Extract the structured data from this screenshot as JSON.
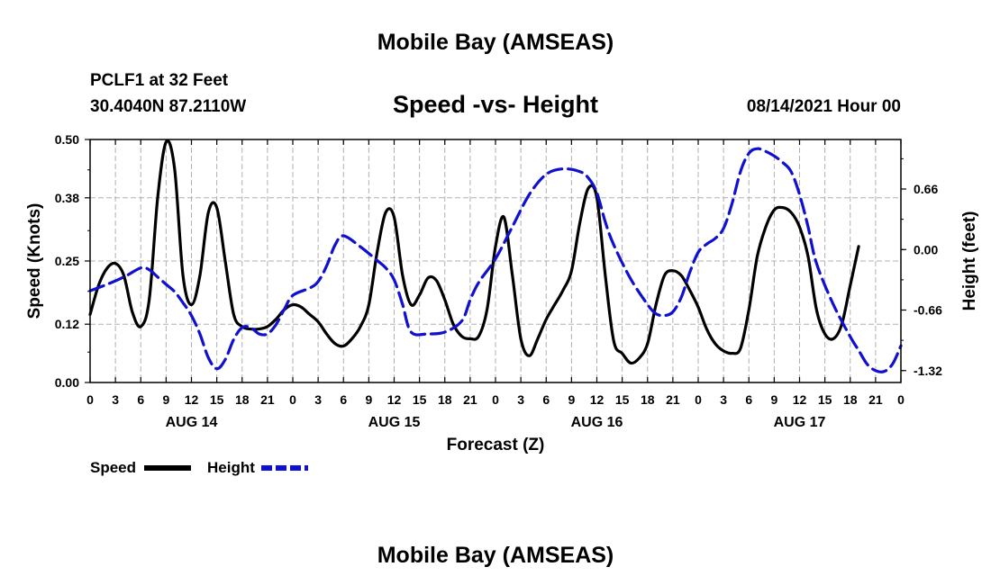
{
  "titles": {
    "main": "Mobile Bay (AMSEAS)",
    "footer": "Mobile Bay (AMSEAS)",
    "station": "PCLF1 at 32 Feet",
    "position": "30.4040N  87.2110W",
    "subtitle": "Speed -vs- Height",
    "datetime": "08/14/2021 Hour 00"
  },
  "colors": {
    "speed": "#000000",
    "height": "#1010d0",
    "grid": "#b0b0b0"
  },
  "chart_data": {
    "type": "line",
    "title": "Speed -vs- Height",
    "xlabel": "Forecast (Z)",
    "ylabel": "Speed (Knots)",
    "y2label": "Height (feet)",
    "xlim": [
      0,
      96
    ],
    "ylim": [
      0,
      0.5
    ],
    "y2lim": [
      -1.45,
      1.2
    ],
    "grid": true,
    "x_tick_labels": [
      "0",
      "3",
      "6",
      "9",
      "12",
      "15",
      "18",
      "21",
      "0",
      "3",
      "6",
      "9",
      "12",
      "15",
      "18",
      "21",
      "0",
      "3",
      "6",
      "9",
      "12",
      "15",
      "18",
      "21",
      "0",
      "3",
      "6",
      "9",
      "12",
      "15",
      "18",
      "21",
      "0"
    ],
    "day_labels": [
      "AUG 14",
      "AUG 15",
      "AUG 16",
      "AUG 17"
    ],
    "y_ticks": [
      "0.00",
      "0.12",
      "0.25",
      "0.38",
      "0.50"
    ],
    "y2_ticks": [
      "-1.32",
      "-0.66",
      "0.00",
      "0.66"
    ],
    "legend": {
      "position": "bottom-left",
      "speed_label": "Speed",
      "height_label": "Height"
    },
    "series": [
      {
        "name": "Speed",
        "axis": "left",
        "style": "solid",
        "points": [
          [
            0,
            0.14
          ],
          [
            1,
            0.2
          ],
          [
            2,
            0.235
          ],
          [
            3,
            0.245
          ],
          [
            4,
            0.22
          ],
          [
            5,
            0.145
          ],
          [
            6,
            0.115
          ],
          [
            7,
            0.17
          ],
          [
            8,
            0.38
          ],
          [
            9,
            0.495
          ],
          [
            10,
            0.44
          ],
          [
            11,
            0.22
          ],
          [
            12,
            0.16
          ],
          [
            13,
            0.22
          ],
          [
            14,
            0.35
          ],
          [
            15,
            0.36
          ],
          [
            16,
            0.25
          ],
          [
            17,
            0.14
          ],
          [
            18,
            0.115
          ],
          [
            19,
            0.11
          ],
          [
            20,
            0.11
          ],
          [
            21,
            0.115
          ],
          [
            22,
            0.13
          ],
          [
            23,
            0.15
          ],
          [
            24,
            0.16
          ],
          [
            25,
            0.155
          ],
          [
            26,
            0.14
          ],
          [
            27,
            0.125
          ],
          [
            28,
            0.1
          ],
          [
            29,
            0.08
          ],
          [
            30,
            0.075
          ],
          [
            31,
            0.09
          ],
          [
            32,
            0.115
          ],
          [
            33,
            0.16
          ],
          [
            34,
            0.27
          ],
          [
            35,
            0.35
          ],
          [
            36,
            0.34
          ],
          [
            37,
            0.22
          ],
          [
            38,
            0.16
          ],
          [
            39,
            0.18
          ],
          [
            40,
            0.215
          ],
          [
            41,
            0.21
          ],
          [
            42,
            0.17
          ],
          [
            43,
            0.12
          ],
          [
            44,
            0.095
          ],
          [
            45,
            0.09
          ],
          [
            46,
            0.095
          ],
          [
            47,
            0.15
          ],
          [
            48,
            0.28
          ],
          [
            49,
            0.34
          ],
          [
            50,
            0.22
          ],
          [
            51,
            0.09
          ],
          [
            52,
            0.055
          ],
          [
            53,
            0.09
          ],
          [
            54,
            0.13
          ],
          [
            55,
            0.16
          ],
          [
            56,
            0.19
          ],
          [
            57,
            0.23
          ],
          [
            58,
            0.33
          ],
          [
            59,
            0.4
          ],
          [
            60,
            0.38
          ],
          [
            61,
            0.22
          ],
          [
            62,
            0.085
          ],
          [
            63,
            0.06
          ],
          [
            64,
            0.04
          ],
          [
            65,
            0.05
          ],
          [
            66,
            0.08
          ],
          [
            67,
            0.16
          ],
          [
            68,
            0.22
          ],
          [
            69,
            0.23
          ],
          [
            70,
            0.22
          ],
          [
            71,
            0.19
          ],
          [
            72,
            0.155
          ],
          [
            73,
            0.11
          ],
          [
            74,
            0.08
          ],
          [
            75,
            0.065
          ],
          [
            76,
            0.06
          ],
          [
            77,
            0.07
          ],
          [
            78,
            0.15
          ],
          [
            79,
            0.26
          ],
          [
            80,
            0.32
          ],
          [
            81,
            0.355
          ],
          [
            82,
            0.36
          ],
          [
            83,
            0.35
          ],
          [
            84,
            0.32
          ],
          [
            85,
            0.26
          ],
          [
            86,
            0.15
          ],
          [
            87,
            0.1
          ],
          [
            88,
            0.09
          ],
          [
            89,
            0.12
          ],
          [
            90,
            0.2
          ],
          [
            91,
            0.28
          ]
        ]
      },
      {
        "name": "Height",
        "axis": "right",
        "style": "dashed",
        "points": [
          [
            0,
            -0.45
          ],
          [
            2,
            -0.38
          ],
          [
            4,
            -0.3
          ],
          [
            6,
            -0.2
          ],
          [
            7,
            -0.22
          ],
          [
            8,
            -0.3
          ],
          [
            9,
            -0.38
          ],
          [
            10,
            -0.46
          ],
          [
            11,
            -0.58
          ],
          [
            12,
            -0.72
          ],
          [
            13,
            -0.92
          ],
          [
            14,
            -1.18
          ],
          [
            15,
            -1.3
          ],
          [
            16,
            -1.2
          ],
          [
            17,
            -0.98
          ],
          [
            18,
            -0.85
          ],
          [
            19,
            -0.85
          ],
          [
            20,
            -0.92
          ],
          [
            21,
            -0.92
          ],
          [
            22,
            -0.82
          ],
          [
            23,
            -0.65
          ],
          [
            24,
            -0.5
          ],
          [
            26,
            -0.42
          ],
          [
            27,
            -0.35
          ],
          [
            28,
            -0.18
          ],
          [
            29,
            0.05
          ],
          [
            30,
            0.15
          ],
          [
            32,
            0.03
          ],
          [
            34,
            -0.12
          ],
          [
            35,
            -0.2
          ],
          [
            36,
            -0.33
          ],
          [
            37,
            -0.6
          ],
          [
            38,
            -0.9
          ],
          [
            40,
            -0.92
          ],
          [
            42,
            -0.9
          ],
          [
            44,
            -0.78
          ],
          [
            45,
            -0.55
          ],
          [
            46,
            -0.36
          ],
          [
            48,
            -0.1
          ],
          [
            50,
            0.25
          ],
          [
            52,
            0.6
          ],
          [
            54,
            0.82
          ],
          [
            56,
            0.88
          ],
          [
            58,
            0.85
          ],
          [
            59,
            0.78
          ],
          [
            60,
            0.62
          ],
          [
            61,
            0.3
          ],
          [
            62,
            0.05
          ],
          [
            64,
            -0.32
          ],
          [
            66,
            -0.6
          ],
          [
            67,
            -0.7
          ],
          [
            68,
            -0.72
          ],
          [
            69,
            -0.68
          ],
          [
            70,
            -0.52
          ],
          [
            71,
            -0.25
          ],
          [
            72,
            -0.03
          ],
          [
            73,
            0.06
          ],
          [
            74,
            0.12
          ],
          [
            75,
            0.23
          ],
          [
            76,
            0.5
          ],
          [
            77,
            0.85
          ],
          [
            78,
            1.05
          ],
          [
            79,
            1.1
          ],
          [
            80,
            1.07
          ],
          [
            81,
            1.02
          ],
          [
            82,
            0.95
          ],
          [
            83,
            0.85
          ],
          [
            84,
            0.6
          ],
          [
            85,
            0.25
          ],
          [
            86,
            -0.15
          ],
          [
            88,
            -0.6
          ],
          [
            90,
            -0.95
          ],
          [
            91,
            -1.1
          ],
          [
            92,
            -1.25
          ],
          [
            93,
            -1.32
          ],
          [
            94,
            -1.33
          ],
          [
            95,
            -1.25
          ],
          [
            96,
            -1.05
          ]
        ]
      }
    ]
  }
}
